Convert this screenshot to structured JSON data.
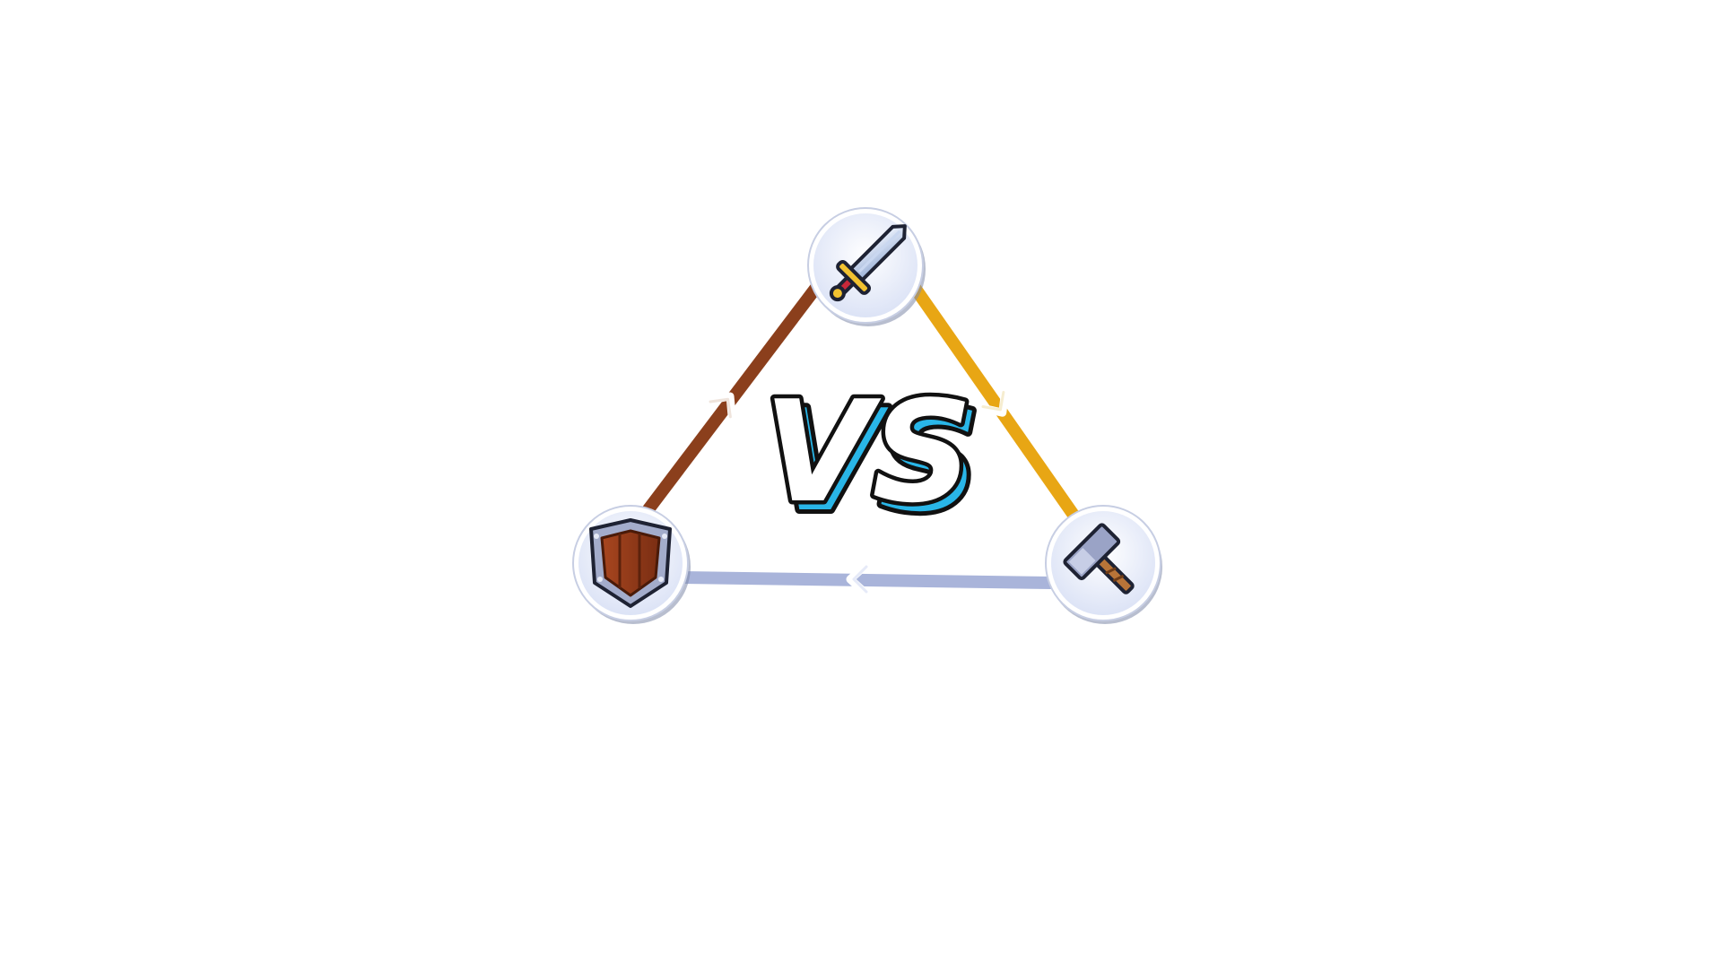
{
  "title_text": "VS",
  "nodes": [
    {
      "id": "sword",
      "icon": "sword-icon"
    },
    {
      "id": "hammer",
      "icon": "hammer-icon"
    },
    {
      "id": "shield",
      "icon": "shield-icon"
    }
  ],
  "links": [
    {
      "from": "sword",
      "to": "hammer",
      "color": "#E8A614"
    },
    {
      "from": "hammer",
      "to": "shield",
      "color": "#A9B4DA"
    },
    {
      "from": "shield",
      "to": "sword",
      "color": "#8B3F1C"
    }
  ],
  "colors": {
    "node_fill": "#EEF2FC",
    "node_border": "#FFFFFF",
    "node_shadow": "#7E88A8",
    "vs_fill": "#FFFFFF",
    "vs_outline": "#111111",
    "vs_accent": "#29B6E8"
  }
}
